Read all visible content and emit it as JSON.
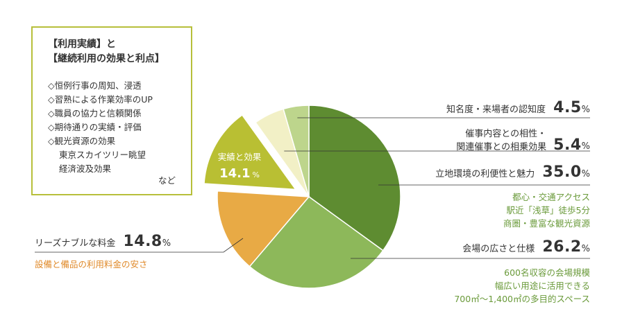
{
  "chart_data": {
    "type": "pie",
    "unit": "%",
    "slices": [
      {
        "name": "立地環境の利便性と魅力",
        "value": 35.0,
        "value_text": "35.0",
        "color": "#5e8c31",
        "notes": [
          "都心・交通アクセス",
          "駅近「浅草」徒歩5分",
          "商圏・豊富な観光資源"
        ]
      },
      {
        "name": "会場の広さと仕様",
        "value": 26.2,
        "value_text": "26.2",
        "color": "#8db85a",
        "notes": [
          "600名収容の会場規模",
          "幅広い用途に活用できる",
          "700㎡〜1,400㎡の多目的スペース"
        ]
      },
      {
        "name": "リーズナブルな料金",
        "value": 14.8,
        "value_text": "14.8",
        "color": "#e8aa45",
        "notes": [
          "設備と備品の利用料金の安さ"
        ]
      },
      {
        "name": "実績と効果",
        "value": 14.1,
        "value_text": "14.1",
        "color": "#b9bf33",
        "exploded": true
      },
      {
        "name_lines": [
          "催事内容との相性・",
          "関連催事との相乗効果"
        ],
        "value": 5.4,
        "value_text": "5.4",
        "color": "#f2f0c6"
      },
      {
        "name": "知名度・来場者の認知度",
        "value": 4.5,
        "value_text": "4.5",
        "color": "#bdd58c"
      }
    ]
  },
  "infobox": {
    "title_lines": [
      "【利用実績】と",
      "【継続利用の効果と利点】"
    ],
    "items": [
      "◇恒例行事の周知、浸透",
      "◇習熟による作業効率のUP",
      "◇職員の協力と信頼関係",
      "◇期待通りの実績・評価",
      "◇観光資源の効果"
    ],
    "subitems": [
      "東京スカイツリー眺望",
      "経済波及効果"
    ],
    "etc": "など"
  },
  "colors": {
    "notes_green": "#6a9a3a",
    "notes_orange": "#e08a2a",
    "box_border": "#b7bf3a",
    "leader_line": "#333333"
  }
}
